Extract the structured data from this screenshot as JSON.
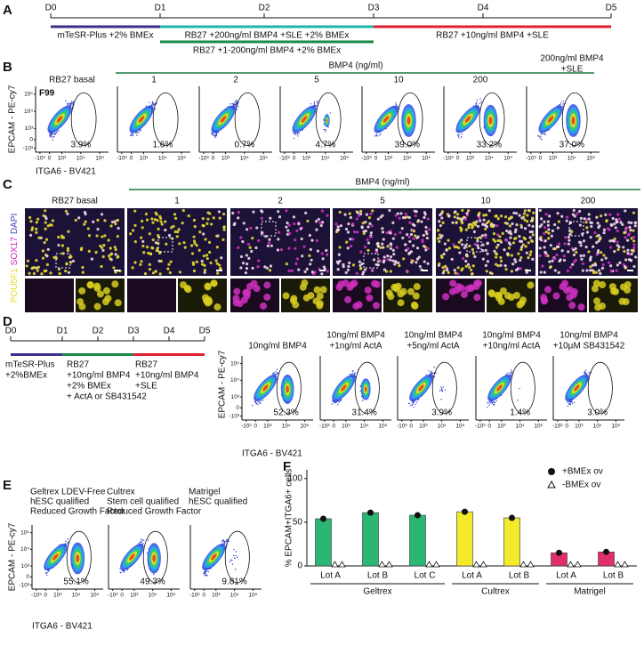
{
  "panel_a": {
    "label": "A",
    "days": [
      "D0",
      "D1",
      "D2",
      "D3",
      "D4",
      "D5"
    ],
    "phases": [
      {
        "text": "mTeSR-Plus +2% BMEx",
        "color": "#3b2e8a"
      },
      {
        "text": "RB27 +200ng/ml BMP4 +SLE +2% BMEx",
        "color": "#1fb5a8"
      },
      {
        "text": "RB27 +1-200ng/ml BMP4 +2% BMEx",
        "color": "#1a8a4a"
      },
      {
        "text": "RB27 +10ng/ml BMP4 +SLE",
        "color": "#e02030"
      }
    ]
  },
  "flow_axes": {
    "x_label": "ITGA6 - BV421",
    "y_label": "EPCAM - PE-cy7",
    "ticks": [
      "-10³",
      "0",
      "10³",
      "10⁴",
      "10⁵"
    ]
  },
  "panel_b": {
    "label": "B",
    "line": "F99",
    "group": "BMP4 (ng/ml)",
    "titles": [
      [
        "RB27 basal"
      ],
      [
        "1"
      ],
      [
        "2"
      ],
      [
        "5"
      ],
      [
        "10"
      ],
      [
        "200"
      ],
      [
        "200ng/ml BMP4",
        "+SLE"
      ]
    ],
    "percents": [
      "3.9%",
      "1.6%",
      "0.7%",
      "4.7%",
      "39.0%",
      "33.2%",
      "37.0%"
    ]
  },
  "panel_c": {
    "label": "C",
    "group": "BMP4 (ng/ml)",
    "titles": [
      "RB27 basal",
      "1",
      "2",
      "5",
      "10",
      "200"
    ],
    "stains": [
      {
        "text": "POU5F1",
        "color": "#e8d820"
      },
      {
        "text": "SOX17",
        "color": "#d020c0"
      },
      {
        "text": "DAPI",
        "color": "#4040c0"
      }
    ]
  },
  "panel_d": {
    "label": "D",
    "days": [
      "D0",
      "D1",
      "D2",
      "D3",
      "D4",
      "D5"
    ],
    "phases": [
      {
        "lines": [
          "mTeSR-Plus",
          "+2%BMEx"
        ],
        "color": "#3b2e8a"
      },
      {
        "lines": [
          "RB27",
          "+10ng/ml BMP4",
          "+2% BMEx",
          "+ ActA or SB431542"
        ],
        "color": "#1a8a4a"
      },
      {
        "lines": [
          "RB27",
          "+10ng/ml BMP4",
          "+SLE"
        ],
        "color": "#e02030"
      }
    ],
    "titles": [
      [
        "10ng/ml BMP4"
      ],
      [
        "10ng/ml BMP4",
        "+1ng/ml ActA"
      ],
      [
        "10ng/ml BMP4",
        "+5ng/ml ActA"
      ],
      [
        "10ng/ml BMP4",
        "+10ng/ml ActA"
      ],
      [
        "10ng/ml BMP4",
        "+10µM SB431542"
      ]
    ],
    "percents": [
      "52.3%",
      "31.4%",
      "3.9%",
      "1.4%",
      "3.0%"
    ]
  },
  "panel_e": {
    "label": "E",
    "titles": [
      [
        "Geltrex LDEV-Free",
        "hESC qualified",
        "Reduced Growth Factor"
      ],
      [
        "Cultrex",
        "Stem cell qualified",
        "Reduced Growth Factor"
      ],
      [
        "Matrigel",
        "hESC qualified"
      ]
    ],
    "percents": [
      "55.1%",
      "49.3%",
      "9.81%"
    ]
  },
  "chart_data": {
    "type": "bar",
    "label": "F",
    "y_label": "% EPCAM+ITGA6+ cells",
    "ylim": [
      0,
      110
    ],
    "yticks": [
      0,
      50,
      100
    ],
    "groups": [
      {
        "name": "Geltrex",
        "color": "#2bb673",
        "lots": [
          "Lot A",
          "Lot B",
          "Lot C"
        ]
      },
      {
        "name": "Cultrex",
        "color": "#f2ea2a",
        "lots": [
          "Lot A",
          "Lot B"
        ]
      },
      {
        "name": "Matrigel",
        "color": "#e0306a",
        "lots": [
          "Lot A",
          "Lot B"
        ]
      }
    ],
    "series": [
      {
        "name": "+BMEx ov",
        "marker": "circle",
        "values": [
          54,
          61,
          58,
          62,
          55,
          15,
          16
        ]
      },
      {
        "name": "-BMEx ov",
        "marker": "triangle",
        "values": [
          1,
          1,
          1,
          1,
          1,
          1,
          1
        ]
      }
    ]
  }
}
